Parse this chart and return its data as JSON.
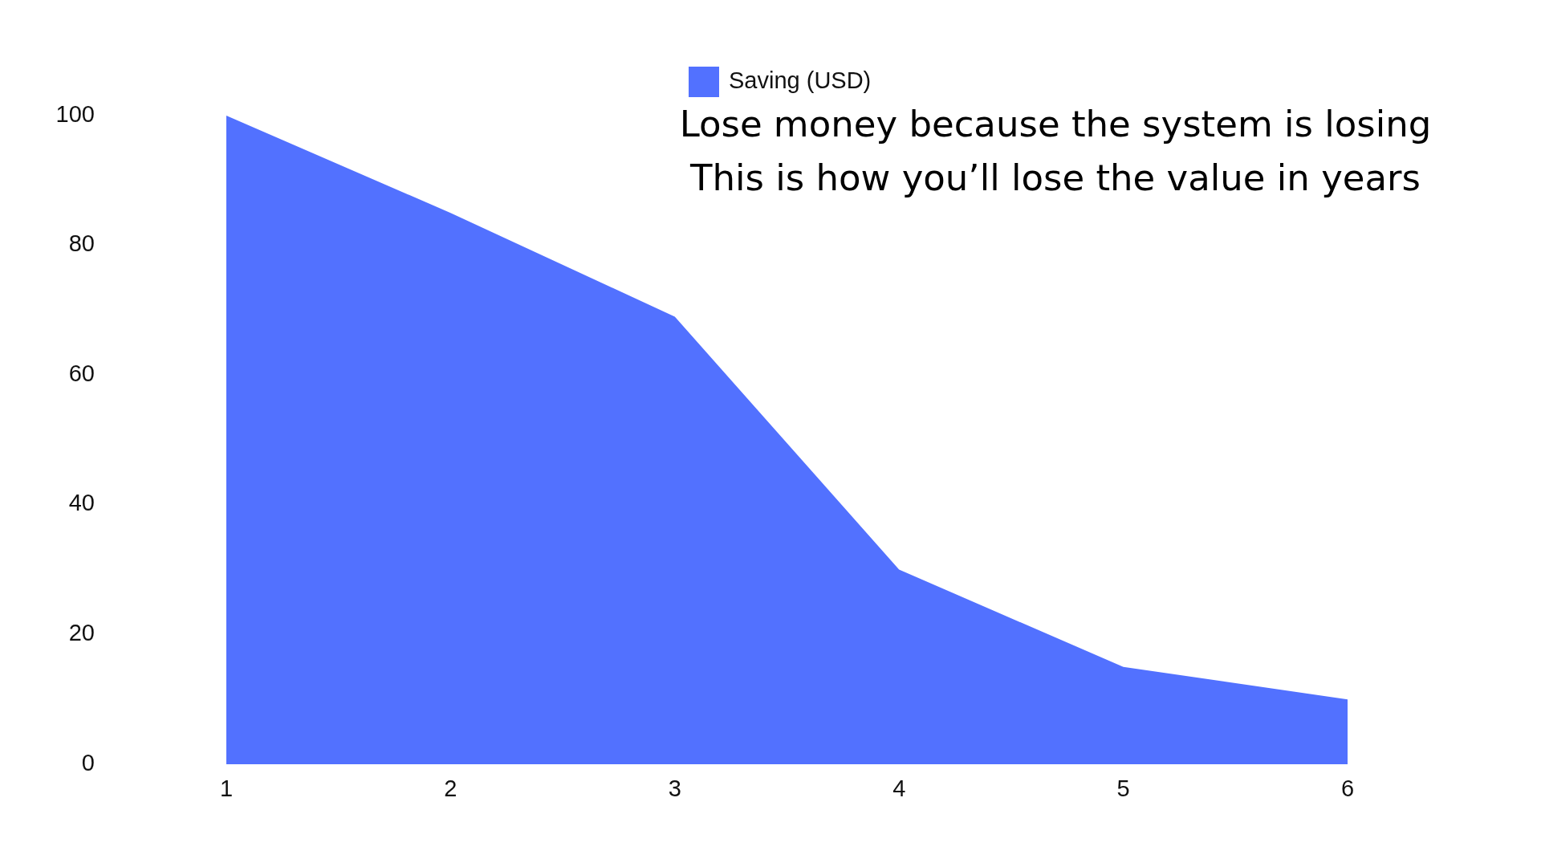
{
  "chart_data": {
    "type": "area",
    "title": "Lose money because the system is losing",
    "subtitle": "This is how you’ll lose the value in years",
    "x": [
      1,
      2,
      3,
      4,
      5,
      6
    ],
    "xlim": [
      1,
      6
    ],
    "xticks": [
      1,
      2,
      3,
      4,
      5,
      6
    ],
    "ylim": [
      0,
      100
    ],
    "yticks": [
      0,
      20,
      40,
      60,
      80,
      100
    ],
    "series": [
      {
        "name": "Saving (USD)",
        "color": "#5271ff",
        "values": [
          100,
          85,
          69,
          30,
          15,
          10
        ]
      }
    ],
    "legend": "top",
    "grid": false
  }
}
